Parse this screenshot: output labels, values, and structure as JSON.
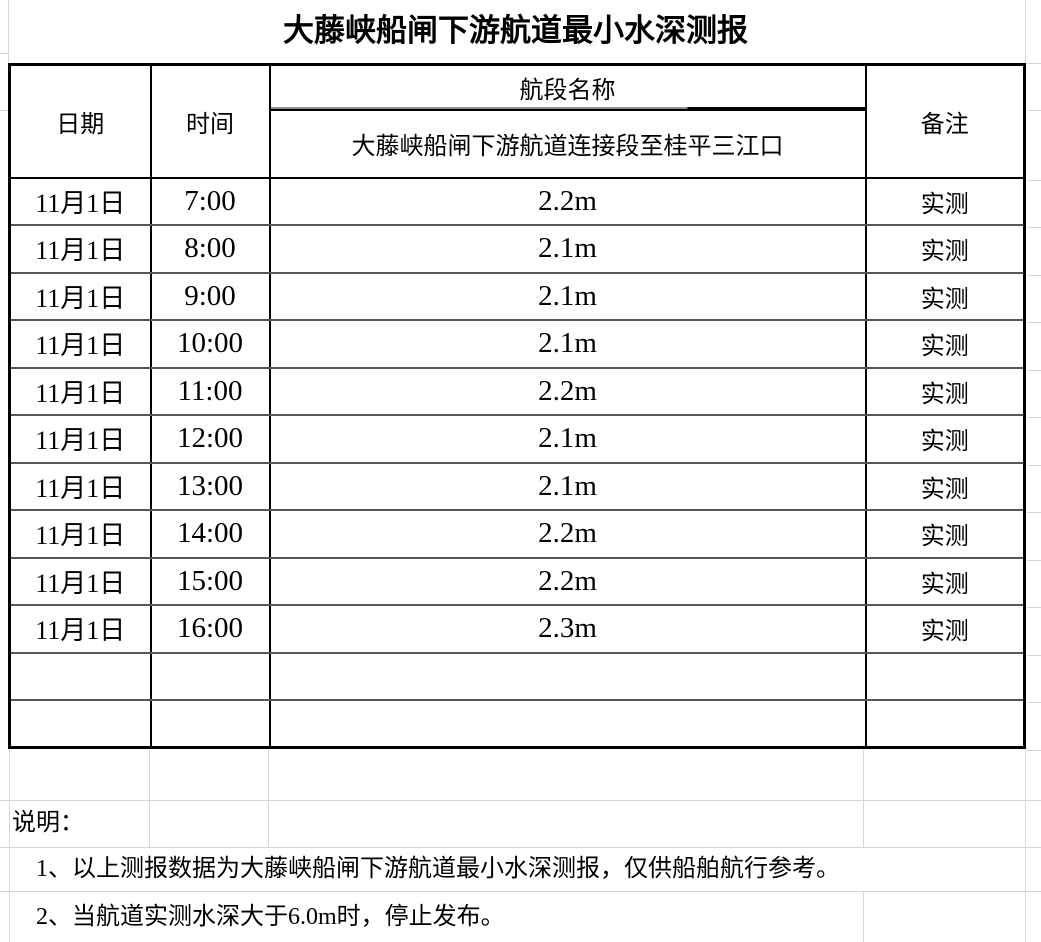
{
  "title": "大藤峡船闸下游航道最小水深测报",
  "table": {
    "headers": {
      "date": "日期",
      "time": "时间",
      "segment_group": "航段名称",
      "segment_name": "大藤峡船闸下游航道连接段至桂平三江口",
      "remark": "备注"
    },
    "rows": [
      {
        "date": "11月1日",
        "time": "7:00",
        "depth": "2.2m",
        "remark": "实测"
      },
      {
        "date": "11月1日",
        "time": "8:00",
        "depth": "2.1m",
        "remark": "实测"
      },
      {
        "date": "11月1日",
        "time": "9:00",
        "depth": "2.1m",
        "remark": "实测"
      },
      {
        "date": "11月1日",
        "time": "10:00",
        "depth": "2.1m",
        "remark": "实测"
      },
      {
        "date": "11月1日",
        "time": "11:00",
        "depth": "2.2m",
        "remark": "实测"
      },
      {
        "date": "11月1日",
        "time": "12:00",
        "depth": "2.1m",
        "remark": "实测"
      },
      {
        "date": "11月1日",
        "time": "13:00",
        "depth": "2.1m",
        "remark": "实测"
      },
      {
        "date": "11月1日",
        "time": "14:00",
        "depth": "2.2m",
        "remark": "实测"
      },
      {
        "date": "11月1日",
        "time": "15:00",
        "depth": "2.2m",
        "remark": "实测"
      },
      {
        "date": "11月1日",
        "time": "16:00",
        "depth": "2.3m",
        "remark": "实测"
      },
      {
        "date": "",
        "time": "",
        "depth": "",
        "remark": ""
      },
      {
        "date": "",
        "time": "",
        "depth": "",
        "remark": ""
      }
    ]
  },
  "notes": {
    "label": "说明：",
    "items": [
      "1、以上测报数据为大藤峡船闸下游航道最小水深测报，仅供船舶航行参考。",
      "2、当航道实测水深大于6.0m时，停止发布。"
    ]
  }
}
